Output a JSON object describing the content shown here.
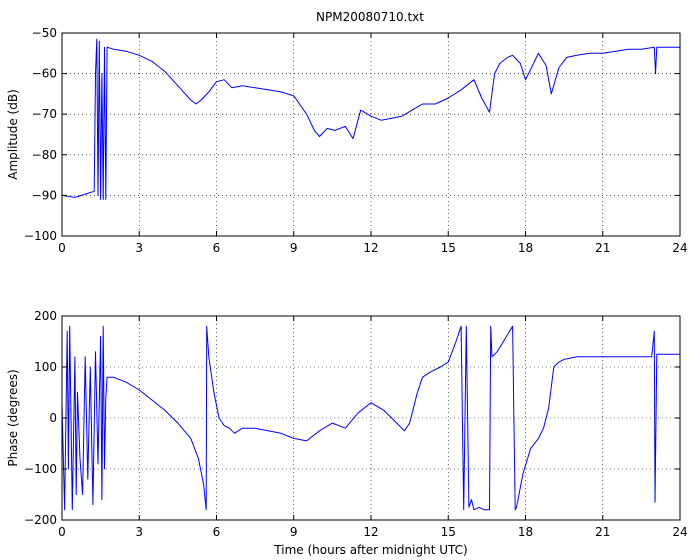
{
  "figure": {
    "title": "NPM20080710.txt"
  },
  "colors": {
    "line": "#0000ff",
    "axes": "#000000",
    "grid": "#000000",
    "background": "#ffffff"
  },
  "chart_data": [
    {
      "type": "line",
      "title": "NPM20080710.txt",
      "xlabel": "",
      "ylabel": "Amplitude (dB)",
      "xlim": [
        0,
        24
      ],
      "ylim": [
        -100,
        -50
      ],
      "xticks": [
        0,
        3,
        6,
        9,
        12,
        15,
        18,
        21,
        24
      ],
      "yticks": [
        -100,
        -90,
        -80,
        -70,
        -60,
        -50
      ],
      "xtick_labels": [
        "0",
        "3",
        "6",
        "9",
        "12",
        "15",
        "18",
        "21",
        "24"
      ],
      "ytick_labels": [
        "−100",
        "−90",
        "−80",
        "−70",
        "−60",
        "−50"
      ],
      "grid": true,
      "series": [
        {
          "x": [
            0,
            0.5,
            1.0,
            1.25,
            1.3,
            1.35,
            1.4,
            1.45,
            1.5,
            1.55,
            1.6,
            1.65,
            1.7,
            1.75,
            2.0,
            2.5,
            3.0,
            3.5,
            4.0,
            4.5,
            5.0,
            5.2,
            5.4,
            5.7,
            6.0,
            6.3,
            6.6,
            7.0,
            7.5,
            8.0,
            8.5,
            9.0,
            9.5,
            9.8,
            10.0,
            10.3,
            10.6,
            11.0,
            11.3,
            11.6,
            12.0,
            12.4,
            12.8,
            13.2,
            13.6,
            14.0,
            14.5,
            15.0,
            15.5,
            16.0,
            16.3,
            16.6,
            16.8,
            17.0,
            17.3,
            17.5,
            17.8,
            18.0,
            18.2,
            18.5,
            18.8,
            19.0,
            19.3,
            19.6,
            20.0,
            20.5,
            21.0,
            21.5,
            22.0,
            22.5,
            23.0,
            23.05,
            23.1,
            23.5,
            24.0
          ],
          "y": [
            -90,
            -90.5,
            -89.5,
            -89,
            -60,
            -51.5,
            -90,
            -52,
            -91,
            -60,
            -91,
            -53.5,
            -91,
            -53.5,
            -54,
            -54.5,
            -55.5,
            -57,
            -59.5,
            -63,
            -66.5,
            -67.5,
            -66.5,
            -64.5,
            -62,
            -61.5,
            -63.5,
            -63,
            -63.5,
            -64,
            -64.5,
            -65.5,
            -70,
            -74,
            -75.5,
            -73.5,
            -74,
            -73,
            -76,
            -69,
            -70.5,
            -71.5,
            -71,
            -70.5,
            -69,
            -67.5,
            -67.5,
            -66,
            -64,
            -61.5,
            -66,
            -69.5,
            -60,
            -57.5,
            -56,
            -55.5,
            -57.5,
            -61.5,
            -59,
            -55,
            -58,
            -65,
            -58.5,
            -56,
            -55.5,
            -55,
            -55,
            -54.5,
            -54,
            -54,
            -53.5,
            -60,
            -53.5,
            -53.5,
            -53.5
          ]
        }
      ]
    },
    {
      "type": "line",
      "title": "",
      "xlabel": "Time (hours after midnight UTC)",
      "ylabel": "Phase (degrees)",
      "xlim": [
        0,
        24
      ],
      "ylim": [
        -200,
        200
      ],
      "xticks": [
        0,
        3,
        6,
        9,
        12,
        15,
        18,
        21,
        24
      ],
      "yticks": [
        -200,
        -100,
        0,
        100,
        200
      ],
      "xtick_labels": [
        "0",
        "3",
        "6",
        "9",
        "12",
        "15",
        "18",
        "21",
        "24"
      ],
      "ytick_labels": [
        "−200",
        "−100",
        "0",
        "100",
        "200"
      ],
      "grid": true,
      "series": [
        {
          "x": [
            0,
            0.1,
            0.2,
            0.25,
            0.3,
            0.35,
            0.4,
            0.5,
            0.55,
            0.6,
            0.7,
            0.8,
            0.9,
            1.0,
            1.1,
            1.2,
            1.3,
            1.4,
            1.5,
            1.55,
            1.6,
            1.65,
            1.7,
            1.75,
            2.0,
            2.5,
            3.0,
            3.5,
            4.0,
            4.5,
            5.0,
            5.3,
            5.5,
            5.6,
            5.62,
            5.7,
            5.9,
            6.1,
            6.3,
            6.5,
            6.7,
            7.0,
            7.5,
            8.0,
            8.5,
            9.0,
            9.5,
            10.0,
            10.5,
            11.0,
            11.5,
            12.0,
            12.5,
            13.0,
            13.3,
            13.5,
            13.8,
            14.0,
            14.3,
            14.7,
            15.0,
            15.3,
            15.5,
            15.6,
            15.7,
            15.8,
            15.9,
            16.0,
            16.2,
            16.4,
            16.6,
            16.65,
            16.7,
            16.9,
            17.2,
            17.5,
            17.6,
            17.65,
            17.9,
            18.2,
            18.5,
            18.7,
            18.9,
            19.1,
            19.3,
            19.5,
            20.0,
            21.0,
            22.0,
            22.9,
            23.0,
            23.03,
            23.1,
            24.0
          ],
          "y": [
            30,
            -180,
            170,
            -100,
            180,
            0,
            -180,
            120,
            -150,
            50,
            -80,
            -150,
            120,
            -120,
            100,
            -170,
            130,
            -90,
            160,
            -160,
            180,
            -100,
            40,
            80,
            80,
            70,
            55,
            35,
            15,
            -10,
            -40,
            -80,
            -130,
            -180,
            180,
            120,
            50,
            0,
            -15,
            -20,
            -30,
            -20,
            -20,
            -25,
            -30,
            -40,
            -45,
            -25,
            -10,
            -20,
            10,
            30,
            15,
            -10,
            -25,
            -10,
            50,
            80,
            90,
            100,
            110,
            150,
            180,
            -180,
            180,
            -175,
            -160,
            -180,
            -175,
            -180,
            -180,
            180,
            120,
            130,
            155,
            180,
            -180,
            -175,
            -110,
            -60,
            -40,
            -20,
            20,
            100,
            110,
            115,
            120,
            120,
            120,
            120,
            170,
            -165,
            125,
            125
          ]
        }
      ]
    }
  ]
}
